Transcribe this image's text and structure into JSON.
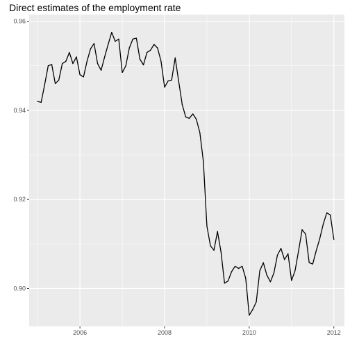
{
  "chart_data": {
    "type": "line",
    "title": "Direct estimates of the employment rate",
    "xlabel": "",
    "ylabel": "",
    "xlim": [
      2004.8,
      2012.25
    ],
    "ylim": [
      0.8915,
      0.9615
    ],
    "x_ticks": [
      2006,
      2008,
      2010,
      2012
    ],
    "x_tick_labels": [
      "2006",
      "2008",
      "2010",
      "2012"
    ],
    "y_ticks": [
      0.9,
      0.92,
      0.94,
      0.96
    ],
    "y_tick_labels": [
      "0.90",
      "0.92",
      "0.94",
      "0.96"
    ],
    "grid": true,
    "background": "#EBEBEB",
    "line_color": "#000000",
    "series": [
      {
        "x_start": 2005.0,
        "x_step": 0.0833333,
        "values": [
          0.942,
          0.9418,
          0.9458,
          0.95,
          0.9503,
          0.946,
          0.9468,
          0.9505,
          0.951,
          0.953,
          0.9505,
          0.952,
          0.948,
          0.9475,
          0.951,
          0.9538,
          0.955,
          0.9505,
          0.949,
          0.952,
          0.9548,
          0.9575,
          0.9555,
          0.956,
          0.9485,
          0.95,
          0.954,
          0.956,
          0.9562,
          0.9515,
          0.9502,
          0.953,
          0.9535,
          0.9548,
          0.954,
          0.951,
          0.9452,
          0.9466,
          0.9468,
          0.9518,
          0.9465,
          0.9413,
          0.9385,
          0.9382,
          0.9392,
          0.938,
          0.935,
          0.9285,
          0.914,
          0.9096,
          0.9086,
          0.9128,
          0.9082,
          0.9012,
          0.9017,
          0.9038,
          0.905,
          0.9045,
          0.905,
          0.9023,
          0.894,
          0.8953,
          0.897,
          0.904,
          0.9058,
          0.903,
          0.9015,
          0.9035,
          0.9075,
          0.909,
          0.9065,
          0.9078,
          0.9018,
          0.904,
          0.9085,
          0.9132,
          0.9122,
          0.9058,
          0.9055,
          0.9085,
          0.9112,
          0.9145,
          0.917,
          0.9165,
          0.911
        ]
      }
    ]
  }
}
